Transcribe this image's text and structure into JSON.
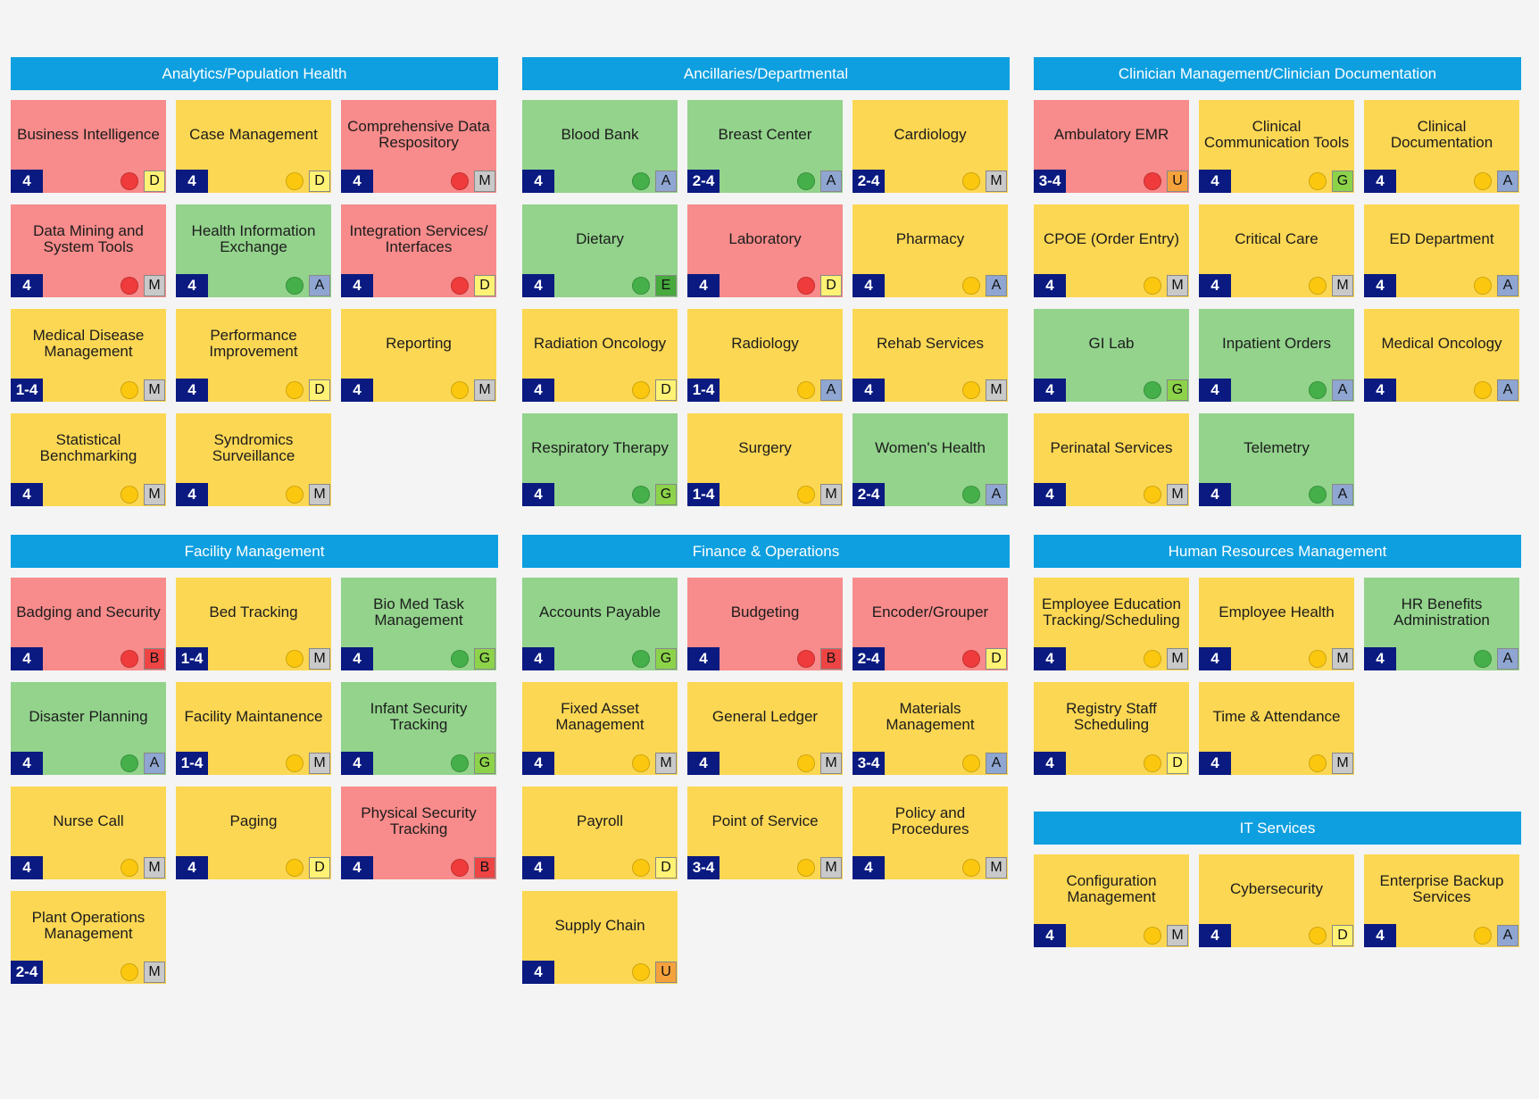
{
  "sections": [
    {
      "title": "Analytics/Population Health",
      "cards": [
        {
          "title": "Business Intelligence",
          "level": "4",
          "color": "red",
          "status": "red",
          "grade": "D"
        },
        {
          "title": "Case Management",
          "level": "4",
          "color": "yellow",
          "status": "yellow",
          "grade": "D"
        },
        {
          "title": "Comprehensive Data Respository",
          "level": "4",
          "color": "red",
          "status": "red",
          "grade": "M"
        },
        {
          "title": "Data Mining and System Tools",
          "level": "4",
          "color": "red",
          "status": "red",
          "grade": "M"
        },
        {
          "title": "Health Information Exchange",
          "level": "4",
          "color": "green",
          "status": "green",
          "grade": "A"
        },
        {
          "title": "Integration Services/ Interfaces",
          "level": "4",
          "color": "red",
          "status": "red",
          "grade": "D"
        },
        {
          "title": "Medical Disease Management",
          "level": "1-4",
          "color": "yellow",
          "status": "yellow",
          "grade": "M"
        },
        {
          "title": "Performance Improvement",
          "level": "4",
          "color": "yellow",
          "status": "yellow",
          "grade": "D"
        },
        {
          "title": "Reporting",
          "level": "4",
          "color": "yellow",
          "status": "yellow",
          "grade": "M"
        },
        {
          "title": "Statistical Benchmarking",
          "level": "4",
          "color": "yellow",
          "status": "yellow",
          "grade": "M"
        },
        {
          "title": "Syndromics Surveillance",
          "level": "4",
          "color": "yellow",
          "status": "yellow",
          "grade": "M"
        }
      ]
    },
    {
      "title": "Ancillaries/Departmental",
      "cards": [
        {
          "title": "Blood Bank",
          "level": "4",
          "color": "green",
          "status": "green",
          "grade": "A"
        },
        {
          "title": "Breast Center",
          "level": "2-4",
          "color": "green",
          "status": "green",
          "grade": "A"
        },
        {
          "title": "Cardiology",
          "level": "2-4",
          "color": "yellow",
          "status": "yellow",
          "grade": "M"
        },
        {
          "title": "Dietary",
          "level": "4",
          "color": "green",
          "status": "green",
          "grade": "E"
        },
        {
          "title": "Laboratory",
          "level": "4",
          "color": "red",
          "status": "red",
          "grade": "D"
        },
        {
          "title": "Pharmacy",
          "level": "4",
          "color": "yellow",
          "status": "yellow",
          "grade": "A"
        },
        {
          "title": "Radiation Oncology",
          "level": "4",
          "color": "yellow",
          "status": "yellow",
          "grade": "D"
        },
        {
          "title": "Radiology",
          "level": "1-4",
          "color": "yellow",
          "status": "yellow",
          "grade": "A"
        },
        {
          "title": "Rehab Services",
          "level": "4",
          "color": "yellow",
          "status": "yellow",
          "grade": "M"
        },
        {
          "title": "Respiratory Therapy",
          "level": "4",
          "color": "green",
          "status": "green",
          "grade": "G"
        },
        {
          "title": "Surgery",
          "level": "1-4",
          "color": "yellow",
          "status": "yellow",
          "grade": "M"
        },
        {
          "title": "Women's Health",
          "level": "2-4",
          "color": "green",
          "status": "green",
          "grade": "A"
        }
      ]
    },
    {
      "title": "Clinician Management/Clinician Documentation",
      "cards": [
        {
          "title": "Ambulatory EMR",
          "level": "3-4",
          "color": "red",
          "status": "red",
          "grade": "U"
        },
        {
          "title": "Clinical Communication Tools",
          "level": "4",
          "color": "yellow",
          "status": "yellow",
          "grade": "G"
        },
        {
          "title": "Clinical Documentation",
          "level": "4",
          "color": "yellow",
          "status": "yellow",
          "grade": "A"
        },
        {
          "title": "CPOE (Order Entry)",
          "level": "4",
          "color": "yellow",
          "status": "yellow",
          "grade": "M"
        },
        {
          "title": "Critical Care",
          "level": "4",
          "color": "yellow",
          "status": "yellow",
          "grade": "M"
        },
        {
          "title": "ED Department",
          "level": "4",
          "color": "yellow",
          "status": "yellow",
          "grade": "A"
        },
        {
          "title": "GI Lab",
          "level": "4",
          "color": "green",
          "status": "green",
          "grade": "G"
        },
        {
          "title": "Inpatient Orders",
          "level": "4",
          "color": "green",
          "status": "green",
          "grade": "A"
        },
        {
          "title": "Medical Oncology",
          "level": "4",
          "color": "yellow",
          "status": "yellow",
          "grade": "A"
        },
        {
          "title": "Perinatal Services",
          "level": "4",
          "color": "yellow",
          "status": "yellow",
          "grade": "M"
        },
        {
          "title": "Telemetry",
          "level": "4",
          "color": "green",
          "status": "green",
          "grade": "A"
        }
      ]
    },
    {
      "title": "Facility Management",
      "cards": [
        {
          "title": "Badging and Security",
          "level": "4",
          "color": "red",
          "status": "red",
          "grade": "B"
        },
        {
          "title": "Bed Tracking",
          "level": "1-4",
          "color": "yellow",
          "status": "yellow",
          "grade": "M"
        },
        {
          "title": "Bio Med Task Management",
          "level": "4",
          "color": "green",
          "status": "green",
          "grade": "G"
        },
        {
          "title": "Disaster Planning",
          "level": "4",
          "color": "green",
          "status": "green",
          "grade": "A"
        },
        {
          "title": "Facility Maintanence",
          "level": "1-4",
          "color": "yellow",
          "status": "yellow",
          "grade": "M"
        },
        {
          "title": "Infant Security Tracking",
          "level": "4",
          "color": "green",
          "status": "green",
          "grade": "G"
        },
        {
          "title": "Nurse Call",
          "level": "4",
          "color": "yellow",
          "status": "yellow",
          "grade": "M"
        },
        {
          "title": "Paging",
          "level": "4",
          "color": "yellow",
          "status": "yellow",
          "grade": "D"
        },
        {
          "title": "Physical Security Tracking",
          "level": "4",
          "color": "red",
          "status": "red",
          "grade": "B"
        },
        {
          "title": "Plant Operations Management",
          "level": "2-4",
          "color": "yellow",
          "status": "yellow",
          "grade": "M"
        }
      ]
    },
    {
      "title": "Finance & Operations",
      "cards": [
        {
          "title": "Accounts Payable",
          "level": "4",
          "color": "green",
          "status": "green",
          "grade": "G"
        },
        {
          "title": "Budgeting",
          "level": "4",
          "color": "red",
          "status": "red",
          "grade": "B"
        },
        {
          "title": "Encoder/Grouper",
          "level": "2-4",
          "color": "red",
          "status": "red",
          "grade": "D"
        },
        {
          "title": "Fixed Asset Management",
          "level": "4",
          "color": "yellow",
          "status": "yellow",
          "grade": "M"
        },
        {
          "title": "General Ledger",
          "level": "4",
          "color": "yellow",
          "status": "yellow",
          "grade": "M"
        },
        {
          "title": "Materials Management",
          "level": "3-4",
          "color": "yellow",
          "status": "yellow",
          "grade": "A"
        },
        {
          "title": "Payroll",
          "level": "4",
          "color": "yellow",
          "status": "yellow",
          "grade": "D"
        },
        {
          "title": "Point of Service",
          "level": "3-4",
          "color": "yellow",
          "status": "yellow",
          "grade": "M"
        },
        {
          "title": "Policy and Procedures",
          "level": "4",
          "color": "yellow",
          "status": "yellow",
          "grade": "M"
        },
        {
          "title": "Supply Chain",
          "level": "4",
          "color": "yellow",
          "status": "yellow",
          "grade": "U"
        }
      ]
    },
    {
      "title": "Human Resources Management",
      "cards": [
        {
          "title": "Employee Education Tracking/Scheduling",
          "level": "4",
          "color": "yellow",
          "status": "yellow",
          "grade": "M"
        },
        {
          "title": "Employee Health",
          "level": "4",
          "color": "yellow",
          "status": "yellow",
          "grade": "M"
        },
        {
          "title": "HR Benefits Administration",
          "level": "4",
          "color": "green",
          "status": "green",
          "grade": "A"
        },
        {
          "title": "Registry Staff Scheduling",
          "level": "4",
          "color": "yellow",
          "status": "yellow",
          "grade": "D"
        },
        {
          "title": "Time & Attendance",
          "level": "4",
          "color": "yellow",
          "status": "yellow",
          "grade": "M"
        }
      ]
    },
    {
      "title": "IT Services",
      "cards": [
        {
          "title": "Configuration Management",
          "level": "4",
          "color": "yellow",
          "status": "yellow",
          "grade": "M"
        },
        {
          "title": "Cybersecurity",
          "level": "4",
          "color": "yellow",
          "status": "yellow",
          "grade": "D"
        },
        {
          "title": "Enterprise Backup Services",
          "level": "4",
          "color": "yellow",
          "status": "yellow",
          "grade": "A"
        }
      ]
    }
  ]
}
